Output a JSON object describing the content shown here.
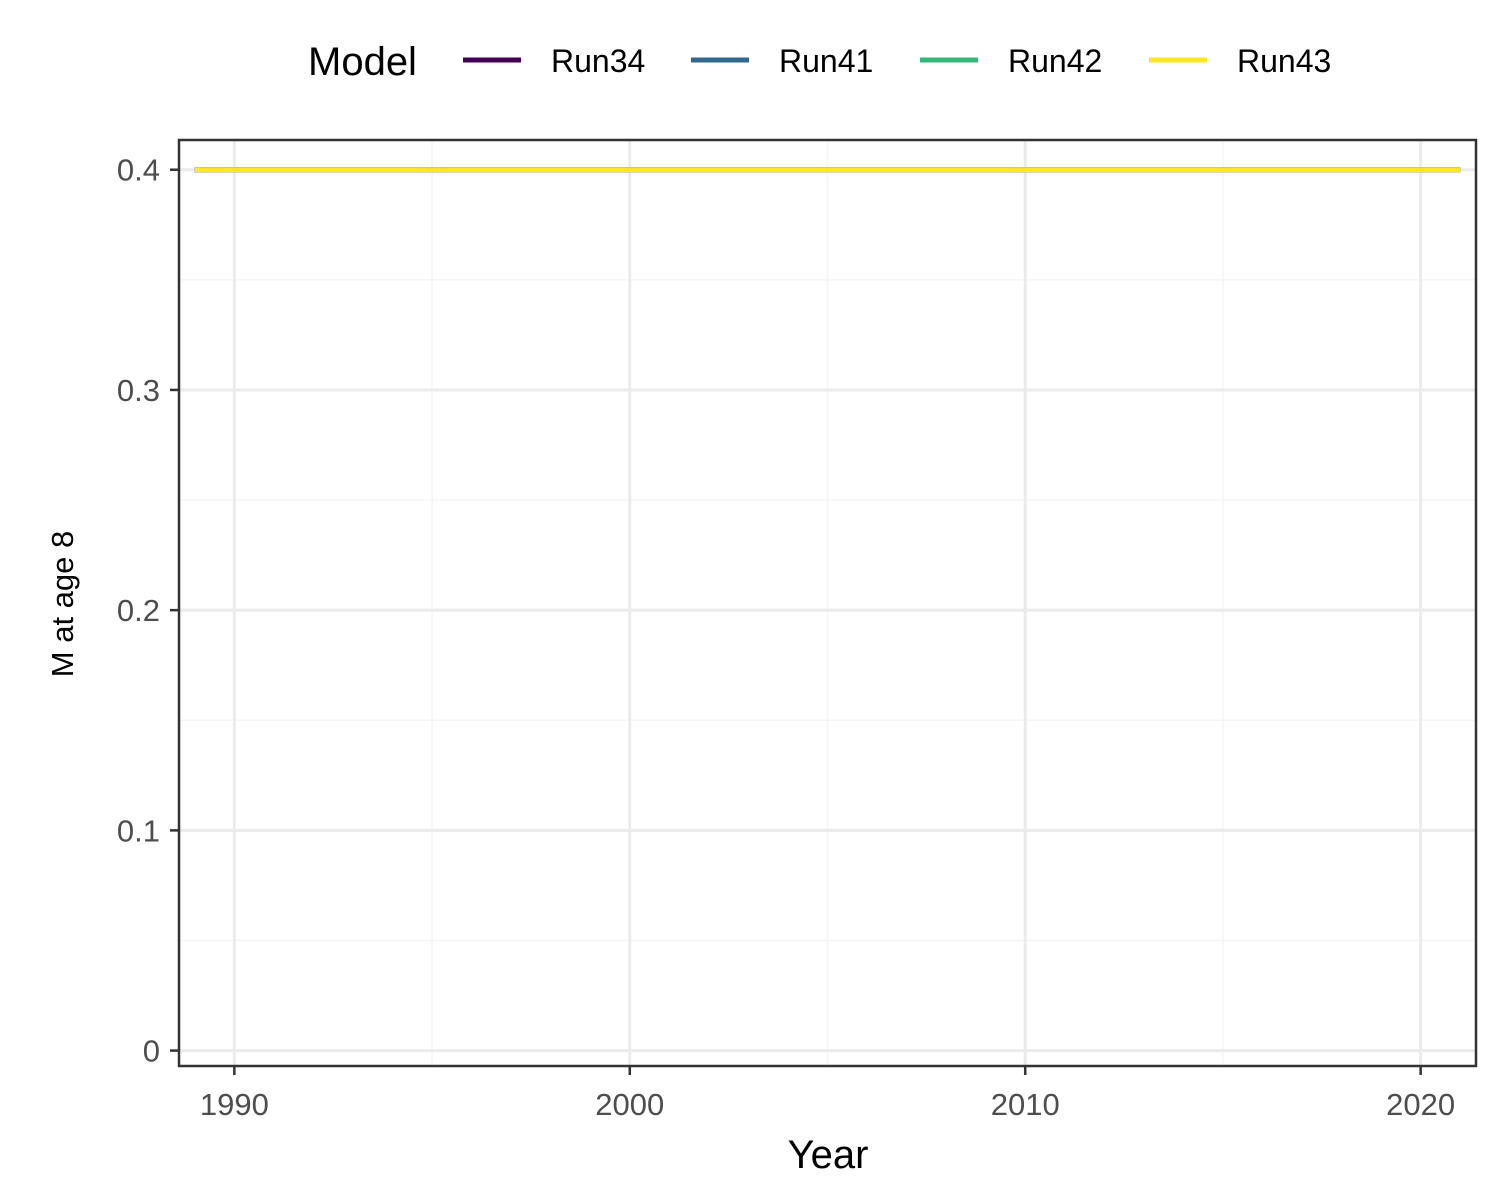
{
  "chart_data": {
    "type": "line",
    "xlabel": "Year",
    "ylabel": "M at age 8",
    "legend_title": "Model",
    "legend_position": "top",
    "grid": true,
    "xlim": [
      1988.6,
      2021.4
    ],
    "ylim": [
      -0.007,
      0.4135
    ],
    "x_ticks": [
      1990,
      2000,
      2010,
      2020
    ],
    "x_tick_labels": [
      "1990",
      "2000",
      "2010",
      "2020"
    ],
    "x_minor_ticks": [
      1995,
      2005,
      2015
    ],
    "y_ticks": [
      0,
      0.1,
      0.2,
      0.3,
      0.4
    ],
    "y_tick_labels": [
      "0",
      "0.1",
      "0.2",
      "0.3",
      "0.4"
    ],
    "y_minor_ticks": [
      0.05,
      0.15,
      0.25,
      0.35
    ],
    "x": [
      1989,
      2021
    ],
    "series": [
      {
        "name": "Run34",
        "color": "#440154",
        "values": [
          0.4,
          0.4
        ]
      },
      {
        "name": "Run41",
        "color": "#31688E",
        "values": [
          0.4,
          0.4
        ]
      },
      {
        "name": "Run42",
        "color": "#35B779",
        "values": [
          0.4,
          0.4
        ]
      },
      {
        "name": "Run43",
        "color": "#FDE725",
        "values": [
          0.4,
          0.4
        ]
      }
    ],
    "colors": {
      "panel_border": "#333333",
      "grid_major": "#ebebeb",
      "grid_minor": "#f5f5f5",
      "tick": "#333333"
    }
  }
}
